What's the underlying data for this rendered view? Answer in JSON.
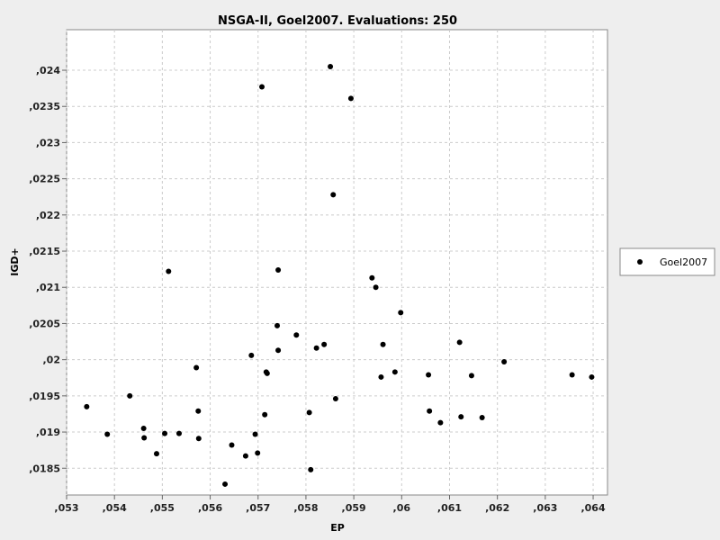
{
  "chart_data": {
    "type": "scatter",
    "title": "NSGA-II, Goel2007. Evaluations: 250",
    "xlabel": "EP",
    "ylabel": "IGD+",
    "xlim": [
      0.053,
      0.0643
    ],
    "ylim": [
      0.01813,
      0.02456
    ],
    "x_ticks": [
      0.053,
      0.054,
      0.055,
      0.056,
      0.057,
      0.058,
      0.059,
      0.06,
      0.061,
      0.062,
      0.063,
      0.064
    ],
    "x_tick_labels": [
      ",053",
      ",054",
      ",055",
      ",056",
      ",057",
      ",058",
      ",059",
      ",06",
      ",061",
      ",062",
      ",063",
      ",064"
    ],
    "y_ticks": [
      0.0185,
      0.019,
      0.0195,
      0.02,
      0.0205,
      0.021,
      0.0215,
      0.022,
      0.0225,
      0.023,
      0.0235,
      0.024
    ],
    "y_tick_labels": [
      ",0185",
      ",019",
      ",0195",
      ",02",
      ",0205",
      ",021",
      ",0215",
      ",022",
      ",0225",
      ",023",
      ",0235",
      ",024"
    ],
    "grid": true,
    "legend": "right",
    "marker_color": "#000000",
    "series": [
      {
        "name": "Goel2007",
        "points": [
          [
            0.05342,
            0.01935
          ],
          [
            0.05385,
            0.01897
          ],
          [
            0.05432,
            0.0195
          ],
          [
            0.05461,
            0.01905
          ],
          [
            0.05462,
            0.01892
          ],
          [
            0.05488,
            0.0187
          ],
          [
            0.05505,
            0.01898
          ],
          [
            0.05513,
            0.02122
          ],
          [
            0.05535,
            0.01898
          ],
          [
            0.05571,
            0.01989
          ],
          [
            0.05575,
            0.01929
          ],
          [
            0.05576,
            0.01891
          ],
          [
            0.05631,
            0.01828
          ],
          [
            0.05645,
            0.01882
          ],
          [
            0.05674,
            0.01867
          ],
          [
            0.05686,
            0.02006
          ],
          [
            0.05694,
            0.01897
          ],
          [
            0.05699,
            0.01871
          ],
          [
            0.05708,
            0.02377
          ],
          [
            0.05714,
            0.01924
          ],
          [
            0.05717,
            0.01983
          ],
          [
            0.05719,
            0.01981
          ],
          [
            0.0574,
            0.02047
          ],
          [
            0.05742,
            0.02013
          ],
          [
            0.05742,
            0.02124
          ],
          [
            0.0578,
            0.02034
          ],
          [
            0.05807,
            0.01927
          ],
          [
            0.0581,
            0.01848
          ],
          [
            0.05822,
            0.02016
          ],
          [
            0.05838,
            0.02021
          ],
          [
            0.05851,
            0.02405
          ],
          [
            0.05857,
            0.02228
          ],
          [
            0.05862,
            0.01946
          ],
          [
            0.05894,
            0.02361
          ],
          [
            0.05938,
            0.02113
          ],
          [
            0.05946,
            0.021
          ],
          [
            0.05957,
            0.01976
          ],
          [
            0.05961,
            0.02021
          ],
          [
            0.05986,
            0.01983
          ],
          [
            0.05998,
            0.02065
          ],
          [
            0.06056,
            0.01979
          ],
          [
            0.06058,
            0.01929
          ],
          [
            0.06081,
            0.01913
          ],
          [
            0.06121,
            0.02024
          ],
          [
            0.06124,
            0.01921
          ],
          [
            0.06146,
            0.01978
          ],
          [
            0.06168,
            0.0192
          ],
          [
            0.06214,
            0.01997
          ],
          [
            0.06356,
            0.01979
          ],
          [
            0.06397,
            0.01976
          ]
        ]
      }
    ]
  }
}
